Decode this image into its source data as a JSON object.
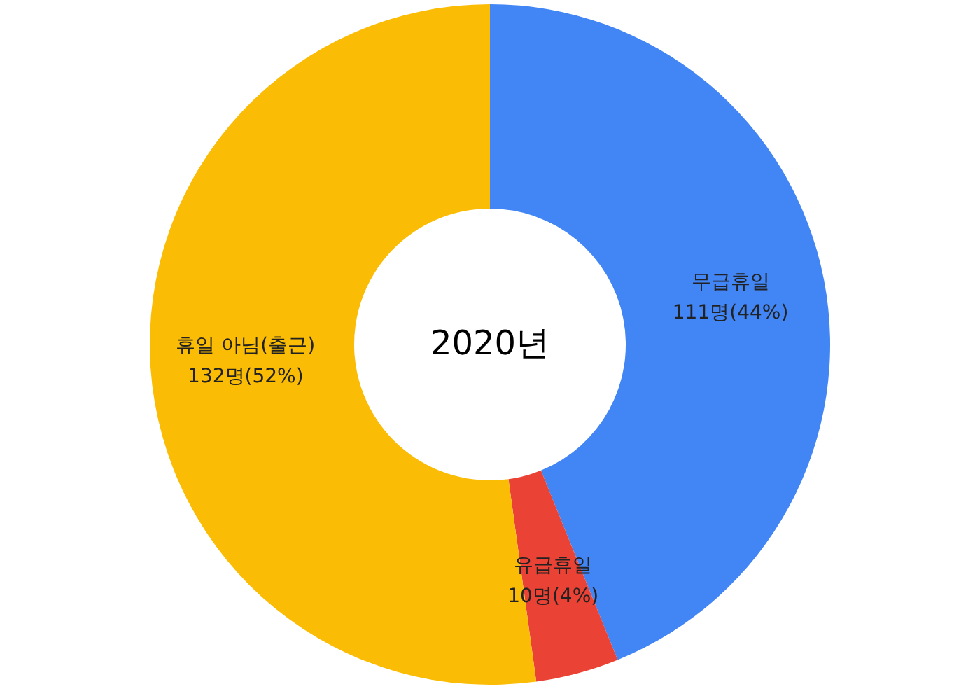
{
  "chart_data": {
    "type": "donut",
    "title": "2020년",
    "categories": [
      "무급휴일",
      "유급휴일",
      "휴일 아님(출근)"
    ],
    "values": [
      111,
      10,
      132
    ],
    "value_labels": [
      "111명(44%)",
      "10명(4%)",
      "132명(52%)"
    ],
    "colors": [
      "#4285f4",
      "#ea4335",
      "#fbbc05"
    ]
  }
}
